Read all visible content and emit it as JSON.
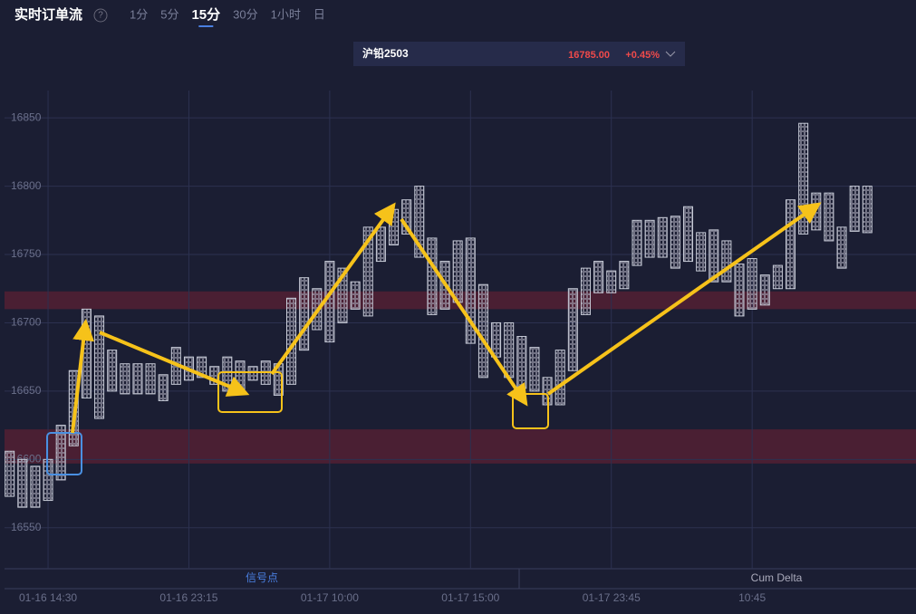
{
  "header": {
    "title": "实时订单流",
    "help": "?",
    "tabs": [
      "1分",
      "5分",
      "15分",
      "30分",
      "1小时",
      "日"
    ],
    "active_tab": 2,
    "symbol": "沪铅2503",
    "price": "16785.00",
    "change": "+0.45%"
  },
  "panels": [
    "信号点",
    "Cum Delta"
  ],
  "chart_data": {
    "type": "footprint",
    "high": [
      16606,
      16600,
      16595,
      16600,
      16625,
      16665,
      16710,
      16705,
      16680,
      16670,
      16670,
      16670,
      16662,
      16682,
      16675,
      16675,
      16668,
      16675,
      16672,
      16668,
      16672,
      16670,
      16718,
      16733,
      16725,
      16745,
      16740,
      16730,
      16770,
      16770,
      16783,
      16790,
      16800,
      16762,
      16745,
      16760,
      16762,
      16728,
      16700,
      16700,
      16690,
      16682,
      16660,
      16680,
      16725,
      16740,
      16745,
      16738,
      16745,
      16775,
      16775,
      16777,
      16778,
      16785,
      16766,
      16768,
      16760,
      16743,
      16747,
      16735,
      16742,
      16790,
      16846,
      16795,
      16795,
      16770,
      16800,
      16800
    ],
    "low": [
      16573,
      16565,
      16565,
      16570,
      16585,
      16610,
      16645,
      16630,
      16650,
      16648,
      16648,
      16648,
      16643,
      16655,
      16658,
      16660,
      16655,
      16650,
      16650,
      16658,
      16655,
      16647,
      16655,
      16680,
      16695,
      16686,
      16700,
      16710,
      16705,
      16745,
      16757,
      16765,
      16748,
      16706,
      16710,
      16715,
      16685,
      16660,
      16675,
      16660,
      16652,
      16650,
      16640,
      16640,
      16665,
      16706,
      16722,
      16722,
      16725,
      16742,
      16748,
      16748,
      16740,
      16745,
      16738,
      16730,
      16730,
      16705,
      16710,
      16713,
      16725,
      16725,
      16765,
      16768,
      16760,
      16740,
      16767,
      16766
    ],
    "ylim": [
      16520,
      16870
    ],
    "yticks": [
      16550,
      16600,
      16650,
      16700,
      16750,
      16800,
      16850
    ],
    "xlim": [
      -0.4,
      70.8
    ],
    "xticks": [
      {
        "value": 3,
        "label": "01-16 14:30"
      },
      {
        "value": 14,
        "label": "01-16 23:15"
      },
      {
        "value": 25,
        "label": "01-17 10:00"
      },
      {
        "value": 36,
        "label": "01-17 15:00"
      },
      {
        "value": 47,
        "label": "01-17 23:45"
      },
      {
        "value": 58,
        "label": "10:45"
      }
    ],
    "zones": [
      {
        "from": 16597,
        "to": 16622,
        "color": "#4a1f33"
      },
      {
        "from": 16710,
        "to": 16723,
        "color": "#4a1f33"
      }
    ],
    "grid": true,
    "color": "#c8ccd8"
  }
}
